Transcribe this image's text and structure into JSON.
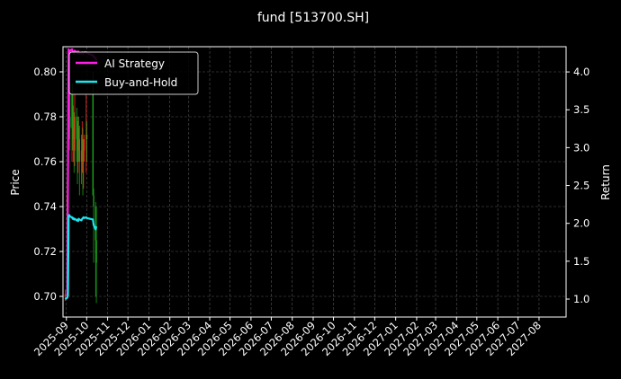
{
  "chart_data": {
    "type": "line",
    "title": "fund [513700.SH]",
    "ylabel": "Price",
    "y2label": "Return",
    "xlim": [
      "2025-08-27",
      "2027-09-10"
    ],
    "ylim": [
      0.6908,
      0.8112
    ],
    "y2lim": [
      0.763,
      4.333
    ],
    "grid": true,
    "legend_placement": "upper-left",
    "x_ticks": [
      "2025-09",
      "2025-10",
      "2025-11",
      "2025-12",
      "2026-01",
      "2026-02",
      "2026-03",
      "2026-04",
      "2026-05",
      "2026-06",
      "2026-07",
      "2026-08",
      "2026-09",
      "2026-10",
      "2026-11",
      "2026-12",
      "2027-01",
      "2027-02",
      "2027-03",
      "2027-04",
      "2027-05",
      "2027-06",
      "2027-07",
      "2027-08"
    ],
    "y_ticks": [
      "0.70",
      "0.72",
      "0.74",
      "0.76",
      "0.78",
      "0.80"
    ],
    "y2_ticks": [
      "1.0",
      "1.5",
      "2.0",
      "2.5",
      "3.0",
      "3.5",
      "4.0"
    ],
    "colors": {
      "up": "#ff2a1a",
      "down": "#1aa01a",
      "ai": "#ff1ee6",
      "bh": "#1ee6f0",
      "grid": "#555555"
    },
    "candles": {
      "dates": [
        "2025-08-29",
        "2025-09-01",
        "2025-09-02",
        "2025-09-03",
        "2025-09-04",
        "2025-09-05",
        "2025-09-08",
        "2025-09-09",
        "2025-09-10",
        "2025-09-11",
        "2025-09-12",
        "2025-09-15",
        "2025-09-16",
        "2025-09-17",
        "2025-09-18",
        "2025-09-19",
        "2025-09-22",
        "2025-09-23",
        "2025-09-24",
        "2025-09-25",
        "2025-09-26",
        "2025-09-29",
        "2025-09-30",
        "2025-10-09",
        "2025-10-10",
        "2025-10-13",
        "2025-10-14"
      ],
      "open": [
        0.7,
        0.701,
        0.745,
        0.77,
        0.795,
        0.78,
        0.775,
        0.79,
        0.77,
        0.775,
        0.765,
        0.78,
        0.77,
        0.765,
        0.775,
        0.77,
        0.76,
        0.765,
        0.77,
        0.76,
        0.765,
        0.77,
        0.772,
        0.79,
        0.745,
        0.74,
        0.725
      ],
      "high": [
        0.703,
        0.752,
        0.79,
        0.806,
        0.8,
        0.795,
        0.792,
        0.795,
        0.785,
        0.782,
        0.79,
        0.784,
        0.778,
        0.78,
        0.78,
        0.776,
        0.772,
        0.778,
        0.775,
        0.77,
        0.772,
        0.79,
        0.778,
        0.8,
        0.748,
        0.742,
        0.74
      ],
      "low": [
        0.698,
        0.7,
        0.74,
        0.765,
        0.77,
        0.765,
        0.76,
        0.765,
        0.76,
        0.755,
        0.758,
        0.76,
        0.75,
        0.755,
        0.76,
        0.745,
        0.75,
        0.755,
        0.745,
        0.748,
        0.76,
        0.755,
        0.76,
        0.745,
        0.715,
        0.7,
        0.697
      ],
      "close": [
        0.701,
        0.745,
        0.77,
        0.795,
        0.78,
        0.775,
        0.79,
        0.77,
        0.775,
        0.765,
        0.78,
        0.77,
        0.765,
        0.775,
        0.77,
        0.76,
        0.765,
        0.77,
        0.76,
        0.765,
        0.77,
        0.772,
        0.77,
        0.745,
        0.74,
        0.725,
        0.715
      ]
    },
    "series": [
      {
        "name": "AI Strategy",
        "axis": "right",
        "values": [
          1.0,
          1.02,
          2.6,
          4.3,
          4.25,
          4.28,
          4.3,
          4.26,
          4.27,
          4.24,
          4.28,
          4.26,
          4.25,
          4.27,
          4.26,
          4.24,
          4.25,
          4.26,
          4.24,
          4.25,
          4.26,
          4.26,
          4.25,
          4.22,
          4.2,
          4.18,
          4.15
        ]
      },
      {
        "name": "Buy-and-Hold",
        "axis": "right",
        "values": [
          1.0,
          1.02,
          1.05,
          2.1,
          2.11,
          2.09,
          2.08,
          2.06,
          2.07,
          2.05,
          2.06,
          2.04,
          2.05,
          2.03,
          2.06,
          2.05,
          2.04,
          2.06,
          2.07,
          2.08,
          2.07,
          2.08,
          2.07,
          2.05,
          1.98,
          1.92,
          1.96
        ]
      }
    ]
  }
}
